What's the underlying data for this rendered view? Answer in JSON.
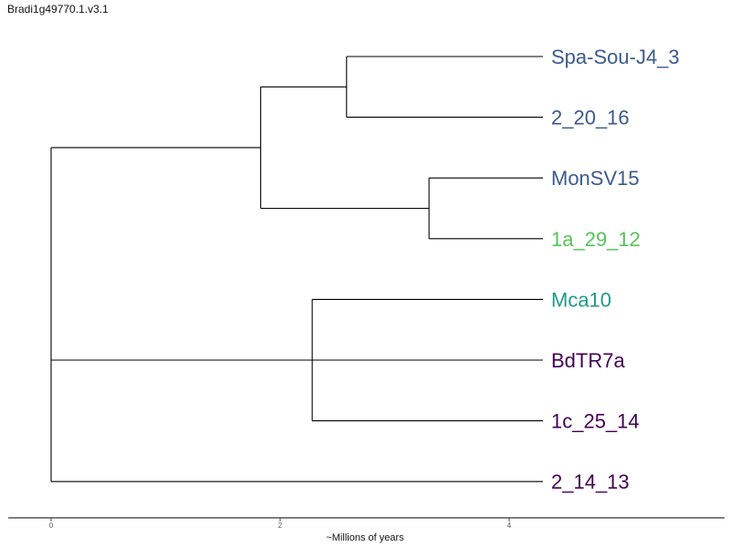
{
  "title": "Bradi1g49770.1.v3.1",
  "axis": {
    "label": "~Millions of years",
    "ticks": [
      "0",
      "2",
      "4"
    ],
    "tick_values": [
      0,
      2,
      4
    ],
    "x_range": [
      0,
      5.7
    ]
  },
  "tree": {
    "tips": [
      {
        "name": "Spa-Sou-J4_3",
        "color": "#3b5a8c"
      },
      {
        "name": "2_20_16",
        "color": "#3b5a8c"
      },
      {
        "name": "MonSV15",
        "color": "#3b5a8c"
      },
      {
        "name": "1a_29_12",
        "color": "#55c45a"
      },
      {
        "name": "Mca10",
        "color": "#1f9a8a"
      },
      {
        "name": "BdTR7a",
        "color": "#440154"
      },
      {
        "name": "1c_25_14",
        "color": "#440154"
      },
      {
        "name": "2_14_13",
        "color": "#440154"
      }
    ],
    "tip_depth": 4.3,
    "nodes": [
      {
        "id": "root",
        "depth": 0.0,
        "children": [
          "n_upper",
          "n_mid",
          "t7"
        ]
      },
      {
        "id": "n_upper",
        "depth": 1.83,
        "children": [
          "n_a",
          "n_b"
        ]
      },
      {
        "id": "n_a",
        "depth": 2.58,
        "children": [
          "t0",
          "t1"
        ]
      },
      {
        "id": "n_b",
        "depth": 3.3,
        "children": [
          "t2",
          "t3"
        ]
      },
      {
        "id": "n_mid",
        "depth": 2.28,
        "children": [
          "t4",
          "t5",
          "t6"
        ]
      }
    ]
  }
}
